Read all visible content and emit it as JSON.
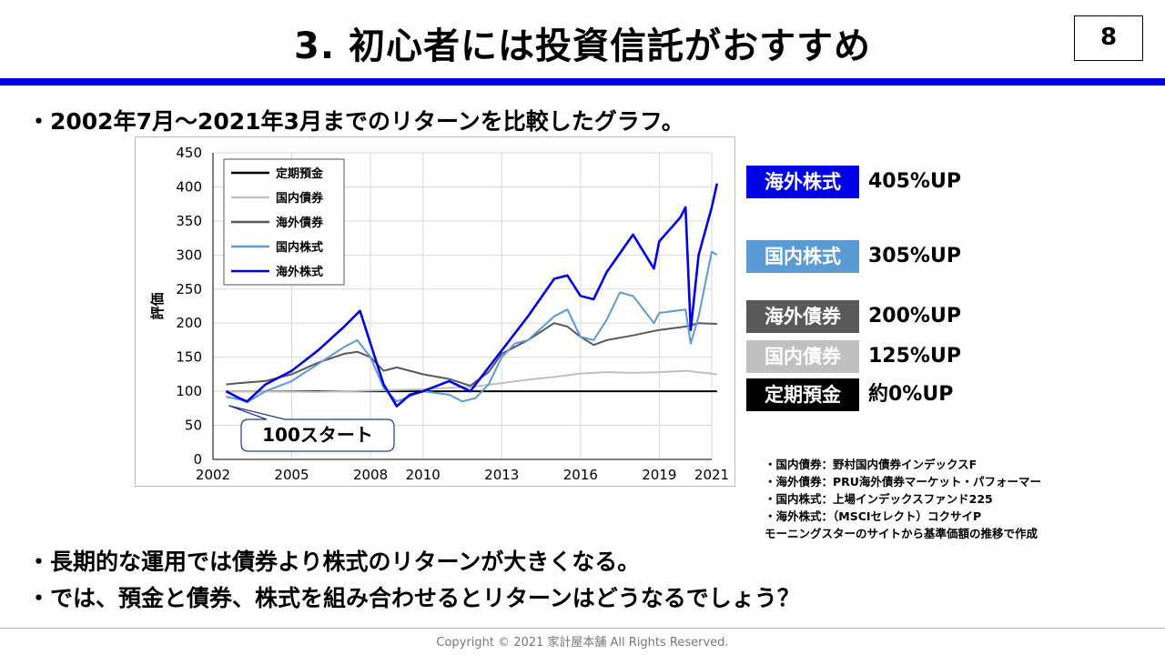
{
  "header": {
    "title": "3. 初心者には投資信託がおすすめ",
    "page_number": "8"
  },
  "intro_bullet": "・2002年7月～2021年3月までのリターンを比較したグラフ。",
  "conclusion_bullets": [
    "・長期的な運用では債券より株式のリターンが大きくなる。",
    "・では、預金と債券、株式を組み合わせるとリターンはどうなるでしょう？"
  ],
  "callout": "100スタート",
  "return_labels": [
    {
      "name": "海外株式",
      "value": "405%UP",
      "color": "#0000e6"
    },
    {
      "name": "国内株式",
      "value": "305%UP",
      "color": "#5b9bd5"
    },
    {
      "name": "海外債券",
      "value": "200%UP",
      "color": "#595959"
    },
    {
      "name": "国内債券",
      "value": "125%UP",
      "color": "#c0c0c0"
    },
    {
      "name": "定期預金",
      "value": "約0%UP",
      "color": "#000000"
    }
  ],
  "notes": [
    "・国内債券：野村国内債券インデックスF",
    "・海外債券：PRU海外債券マーケット・パフォーマー",
    "・国内株式：上場インデックスファンド225",
    "・海外株式：（MSCIセレクト）コクサイP",
    "モーニングスターのサイトから基準価額の推移で作成"
  ],
  "footer": "Copyright © 2021 家計屋本舗 All Rights Reserved.",
  "chart_data": {
    "type": "line",
    "ylabel": "評価",
    "xlabel": "",
    "xlim": [
      2002,
      2021
    ],
    "ylim": [
      0,
      450
    ],
    "x_ticks": [
      "2002",
      "2005",
      "2008",
      "2010",
      "2013",
      "2016",
      "2019",
      "2021"
    ],
    "y_ticks": [
      "0",
      "50",
      "100",
      "150",
      "200",
      "250",
      "300",
      "350",
      "400",
      "450"
    ],
    "grid": true,
    "legend_position": "top-left",
    "series": [
      {
        "name": "定期預金",
        "color": "#000000",
        "x": [
          2002.5,
          2021.2
        ],
        "y": [
          100,
          100
        ]
      },
      {
        "name": "国内債券",
        "color": "#c0c0c0",
        "x": [
          2002.5,
          2004,
          2006,
          2008,
          2010,
          2012,
          2013,
          2014,
          2015,
          2016,
          2017,
          2018,
          2019,
          2020,
          2021.2
        ],
        "y": [
          100,
          100,
          99,
          101,
          103,
          107,
          112,
          117,
          121,
          126,
          128,
          127,
          128,
          130,
          125
        ]
      },
      {
        "name": "海外債券",
        "color": "#595959",
        "x": [
          2002.5,
          2003,
          2004,
          2005,
          2006,
          2007,
          2007.5,
          2008,
          2008.5,
          2009,
          2010,
          2011,
          2011.8,
          2012.5,
          2013,
          2014,
          2015,
          2015.5,
          2016,
          2016.5,
          2017,
          2018,
          2019,
          2020,
          2020.5,
          2021.2
        ],
        "y": [
          110,
          112,
          115,
          125,
          142,
          155,
          158,
          150,
          130,
          135,
          125,
          118,
          108,
          128,
          155,
          175,
          200,
          195,
          180,
          168,
          175,
          182,
          190,
          195,
          200,
          199
        ]
      },
      {
        "name": "国内株式",
        "color": "#5b9bd5",
        "x": [
          2002.5,
          2003,
          2003.3,
          2004,
          2005,
          2006,
          2007,
          2007.5,
          2008,
          2008.5,
          2009,
          2010,
          2011,
          2011.5,
          2012,
          2012.5,
          2013,
          2013.5,
          2014,
          2015,
          2015.5,
          2016,
          2016.5,
          2017,
          2017.5,
          2018,
          2018.8,
          2019,
          2020,
          2020.2,
          2020.5,
          2021,
          2021.2
        ],
        "y": [
          92,
          88,
          84,
          100,
          115,
          140,
          165,
          175,
          150,
          105,
          85,
          100,
          95,
          85,
          90,
          110,
          150,
          170,
          175,
          210,
          220,
          180,
          175,
          205,
          245,
          240,
          200,
          215,
          220,
          170,
          210,
          305,
          300
        ]
      },
      {
        "name": "海外株式",
        "color": "#0000e6",
        "x": [
          2002.5,
          2003,
          2003.3,
          2004,
          2005,
          2006,
          2007,
          2007.6,
          2008,
          2008.5,
          2009,
          2009.5,
          2010,
          2011,
          2011.8,
          2012,
          2013,
          2014,
          2015,
          2015.5,
          2016,
          2016.5,
          2017,
          2018,
          2018.8,
          2019,
          2019.8,
          2020,
          2020.2,
          2020.5,
          2021,
          2021.2
        ],
        "y": [
          100,
          90,
          85,
          110,
          130,
          160,
          195,
          218,
          170,
          110,
          78,
          95,
          100,
          115,
          100,
          110,
          160,
          210,
          265,
          270,
          240,
          235,
          275,
          330,
          280,
          320,
          355,
          370,
          190,
          300,
          370,
          405
        ]
      }
    ]
  }
}
